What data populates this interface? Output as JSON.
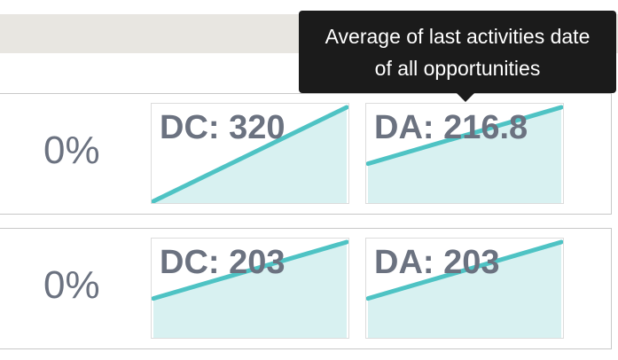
{
  "tooltip": {
    "line1": "Average of last activities date",
    "line2": "of all opportunities"
  },
  "colors": {
    "line": "#4ec3c4",
    "fill": "#d8f1f1",
    "text": "#6b7280"
  },
  "rows": [
    {
      "percent": "0%",
      "dc": {
        "label": "DC: 320",
        "trend": [
          0,
          1
        ]
      },
      "da": {
        "label": "DA: 216.8",
        "trend": [
          0.4,
          1
        ]
      }
    },
    {
      "percent": "0%",
      "dc": {
        "label": "DC: 203",
        "trend": [
          0.4,
          1
        ]
      },
      "da": {
        "label": "DA: 203",
        "trend": [
          0.4,
          1
        ]
      }
    }
  ]
}
